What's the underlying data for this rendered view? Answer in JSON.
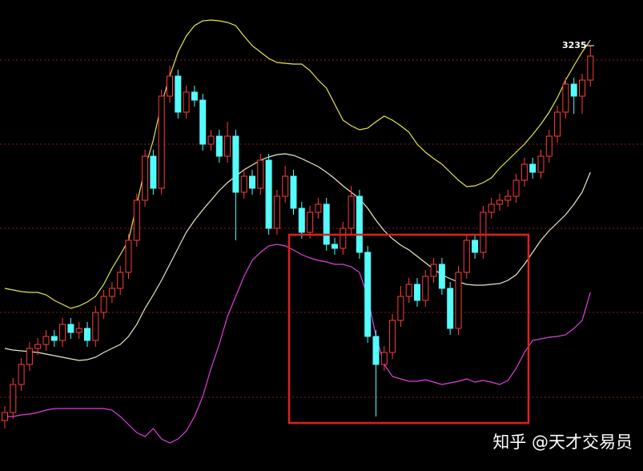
{
  "chart_data": {
    "type": "candlestick",
    "ylim": [
      2704,
      3292
    ],
    "grid_lines": [
      3217,
      3112,
      3007,
      2902,
      2796
    ],
    "grid_color": "#8a1c1c",
    "up_color": "#ff3c3c",
    "down_color": "#54fcfc",
    "ohlc": [
      [
        2767,
        2785,
        2757,
        2777
      ],
      [
        2777,
        2820,
        2769,
        2812
      ],
      [
        2812,
        2845,
        2804,
        2837
      ],
      [
        2837,
        2865,
        2829,
        2857
      ],
      [
        2857,
        2870,
        2849,
        2862
      ],
      [
        2862,
        2880,
        2854,
        2872
      ],
      [
        2872,
        2880,
        2859,
        2867
      ],
      [
        2867,
        2895,
        2859,
        2887
      ],
      [
        2887,
        2895,
        2869,
        2877
      ],
      [
        2877,
        2890,
        2869,
        2882
      ],
      [
        2882,
        2890,
        2859,
        2867
      ],
      [
        2867,
        2910,
        2859,
        2902
      ],
      [
        2902,
        2930,
        2894,
        2922
      ],
      [
        2922,
        2940,
        2914,
        2932
      ],
      [
        2932,
        2960,
        2924,
        2952
      ],
      [
        2952,
        3000,
        2944,
        2992
      ],
      [
        2992,
        3050,
        2984,
        3042
      ],
      [
        3042,
        3105,
        3034,
        3097
      ],
      [
        3097,
        3105,
        3049,
        3057
      ],
      [
        3057,
        3180,
        3049,
        3172
      ],
      [
        3172,
        3210,
        3164,
        3197
      ],
      [
        3197,
        3205,
        3144,
        3152
      ],
      [
        3152,
        3185,
        3144,
        3177
      ],
      [
        3177,
        3185,
        3159,
        3167
      ],
      [
        3167,
        3175,
        3104,
        3112
      ],
      [
        3112,
        3130,
        3104,
        3122
      ],
      [
        3122,
        3130,
        3089,
        3097
      ],
      [
        3097,
        3140,
        3089,
        3122
      ],
      [
        3122,
        3130,
        2992,
        3052
      ],
      [
        3052,
        3080,
        3044,
        3072
      ],
      [
        3072,
        3080,
        3049,
        3057
      ],
      [
        3057,
        3100,
        3049,
        3092
      ],
      [
        3092,
        3100,
        2999,
        3007
      ],
      [
        3007,
        3055,
        2999,
        3047
      ],
      [
        3047,
        3085,
        3039,
        3072
      ],
      [
        3072,
        3080,
        3024,
        3032
      ],
      [
        3032,
        3040,
        2994,
        3002
      ],
      [
        3002,
        3035,
        2994,
        3027
      ],
      [
        3027,
        3045,
        3019,
        3037
      ],
      [
        3037,
        3045,
        2979,
        2987
      ],
      [
        2987,
        2995,
        2974,
        2982
      ],
      [
        2982,
        3015,
        2974,
        3007
      ],
      [
        3007,
        3060,
        2999,
        3047
      ],
      [
        3047,
        3055,
        2969,
        2977
      ],
      [
        2977,
        2985,
        2864,
        2872
      ],
      [
        2872,
        2880,
        2772,
        2837
      ],
      [
        2837,
        2860,
        2829,
        2852
      ],
      [
        2852,
        2900,
        2844,
        2892
      ],
      [
        2892,
        2935,
        2884,
        2922
      ],
      [
        2922,
        2945,
        2914,
        2937
      ],
      [
        2937,
        2945,
        2909,
        2917
      ],
      [
        2917,
        2955,
        2909,
        2947
      ],
      [
        2947,
        2970,
        2939,
        2962
      ],
      [
        2962,
        2970,
        2924,
        2932
      ],
      [
        2932,
        2940,
        2874,
        2882
      ],
      [
        2882,
        2960,
        2874,
        2952
      ],
      [
        2952,
        3000,
        2944,
        2992
      ],
      [
        2992,
        3000,
        2969,
        2977
      ],
      [
        2977,
        3035,
        2969,
        3027
      ],
      [
        3027,
        3045,
        3019,
        3037
      ],
      [
        3037,
        3050,
        3029,
        3042
      ],
      [
        3042,
        3055,
        3034,
        3047
      ],
      [
        3047,
        3075,
        3039,
        3067
      ],
      [
        3067,
        3095,
        3059,
        3087
      ],
      [
        3087,
        3095,
        3069,
        3077
      ],
      [
        3077,
        3105,
        3069,
        3097
      ],
      [
        3097,
        3130,
        3089,
        3122
      ],
      [
        3122,
        3160,
        3114,
        3152
      ],
      [
        3152,
        3195,
        3144,
        3187
      ],
      [
        3187,
        3195,
        3150,
        3172
      ],
      [
        3172,
        3200,
        3150,
        3192
      ],
      [
        3192,
        3235,
        3184,
        3222
      ]
    ],
    "lines": [
      {
        "color": "#e6e64e",
        "values": [
          2932,
          2930,
          2928,
          2927,
          2927,
          2924,
          2917,
          2912,
          2907,
          2910,
          2915,
          2922,
          2937,
          2957,
          2974,
          2992,
          3037,
          3082,
          3117,
          3162,
          3197,
          3227,
          3247,
          3260,
          3266,
          3267,
          3266,
          3264,
          3260,
          3247,
          3235,
          3227,
          3219,
          3214,
          3213,
          3212,
          3212,
          3204,
          3192,
          3182,
          3162,
          3142,
          3135,
          3130,
          3132,
          3140,
          3147,
          3142,
          3135,
          3127,
          3112,
          3102,
          3094,
          3087,
          3077,
          3067,
          3059,
          3060,
          3064,
          3070,
          3082,
          3092,
          3102,
          3112,
          3124,
          3137,
          3152,
          3170,
          3192,
          3210,
          3227,
          3242
        ]
      },
      {
        "color": "#e8e8c8",
        "values": [
          2857,
          2855,
          2854,
          2853,
          2852,
          2850,
          2848,
          2846,
          2844,
          2842,
          2843,
          2846,
          2852,
          2857,
          2862,
          2872,
          2887,
          2907,
          2924,
          2942,
          2962,
          2982,
          3002,
          3017,
          3030,
          3042,
          3054,
          3064,
          3072,
          3080,
          3086,
          3092,
          3096,
          3099,
          3100,
          3098,
          3094,
          3089,
          3084,
          3077,
          3069,
          3060,
          3052,
          3044,
          3032,
          3017,
          3004,
          2994,
          2986,
          2980,
          2972,
          2964,
          2956,
          2949,
          2944,
          2940,
          2937,
          2936,
          2936,
          2937,
          2938,
          2942,
          2949,
          2962,
          2977,
          2992,
          3004,
          3014,
          3024,
          3037,
          3052,
          3077
        ]
      },
      {
        "color": "#e040e0",
        "values": [
          2772,
          2772,
          2774,
          2775,
          2777,
          2780,
          2782,
          2782,
          2782,
          2782,
          2782,
          2782,
          2782,
          2780,
          2772,
          2762,
          2752,
          2747,
          2757,
          2744,
          2739,
          2744,
          2754,
          2772,
          2797,
          2832,
          2862,
          2897,
          2922,
          2947,
          2967,
          2977,
          2985,
          2987,
          2985,
          2980,
          2974,
          2970,
          2967,
          2965,
          2962,
          2962,
          2959,
          2952,
          2922,
          2872,
          2837,
          2822,
          2819,
          2816,
          2816,
          2818,
          2815,
          2812,
          2814,
          2816,
          2819,
          2815,
          2817,
          2815,
          2812,
          2817,
          2832,
          2852,
          2867,
          2869,
          2871,
          2872,
          2874,
          2882,
          2892,
          2927
        ]
      }
    ],
    "high_label": 3235,
    "watermark": "知乎 @天才交易员"
  }
}
